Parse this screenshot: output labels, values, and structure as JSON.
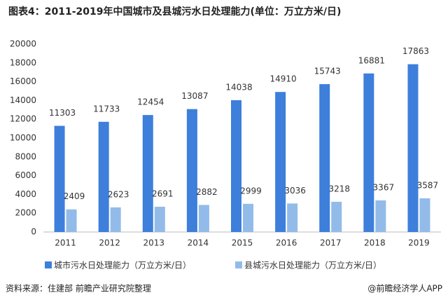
{
  "chart_data": {
    "type": "bar",
    "title": "图表4：2011-2019年中国城市及县城污水日处理能力(单位：万立方米/日)",
    "categories": [
      "2011",
      "2012",
      "2013",
      "2014",
      "2015",
      "2016",
      "2017",
      "2018",
      "2019"
    ],
    "series": [
      {
        "name": "城市污水日处理能力（万立方米/日）",
        "color": "#3d7fdb",
        "values": [
          11303,
          11733,
          12454,
          13087,
          14038,
          14910,
          15743,
          16881,
          17863
        ]
      },
      {
        "name": "县城污水日处理能力（万立方米/日）",
        "color": "#92bbea",
        "values": [
          2409,
          2623,
          2691,
          2882,
          2999,
          3036,
          3218,
          3367,
          3587
        ]
      }
    ],
    "ylim": [
      0,
      20000
    ],
    "yticks": [
      0,
      2000,
      4000,
      6000,
      8000,
      10000,
      12000,
      14000,
      16000,
      18000,
      20000
    ],
    "grid": false,
    "source": "资料来源：住建部 前瞻产业研究院整理",
    "credit": "@前瞻经济学人APP"
  }
}
